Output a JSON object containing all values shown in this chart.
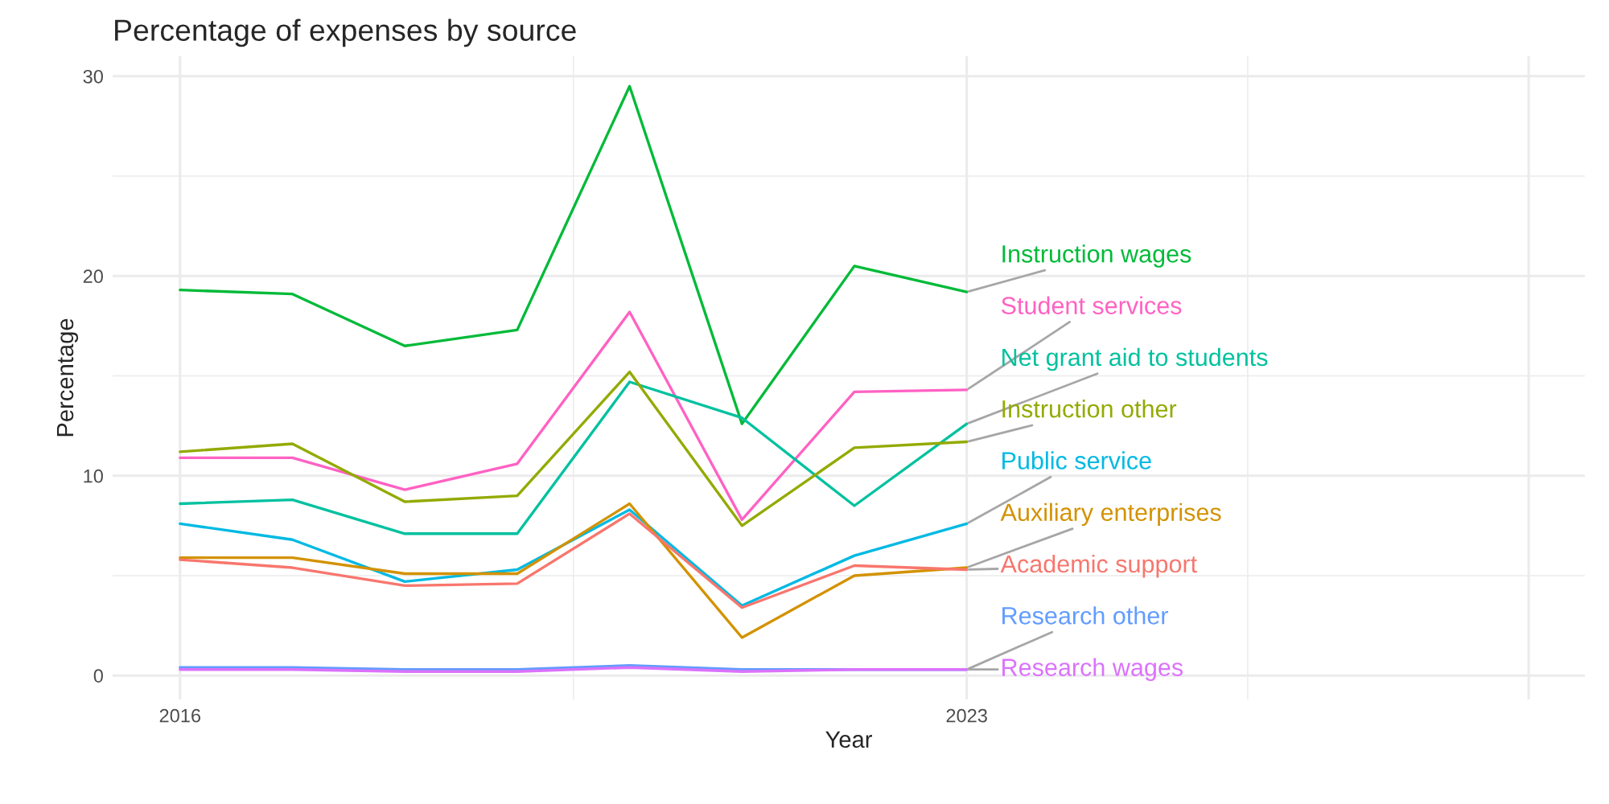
{
  "chart_data": {
    "type": "line",
    "title": "Percentage of expenses by source",
    "xlabel": "Year",
    "ylabel": "Percentage",
    "x": [
      2016,
      2017,
      2018,
      2019,
      2020,
      2021,
      2022,
      2023
    ],
    "xlim": [
      2015.4,
      2028.5
    ],
    "xticks": [
      2016,
      2023,
      {
        "value": 2028,
        "label": null
      }
    ],
    "ylim": [
      -1.2,
      31
    ],
    "yticks": [
      0,
      10,
      20,
      30
    ],
    "grid": true,
    "legend": false,
    "series": [
      {
        "name": "Instruction wages",
        "color": "#00ba38",
        "values": [
          19.3,
          19.1,
          16.5,
          17.3,
          29.5,
          12.6,
          20.5,
          19.2
        ]
      },
      {
        "name": "Student services",
        "color": "#ff61c3",
        "values": [
          10.9,
          10.9,
          9.3,
          10.6,
          18.2,
          7.8,
          14.2,
          14.3
        ]
      },
      {
        "name": "Net grant aid to students",
        "color": "#00c19f",
        "values": [
          8.6,
          8.8,
          7.1,
          7.1,
          14.7,
          12.9,
          8.5,
          12.6
        ]
      },
      {
        "name": "Instruction other",
        "color": "#93aa00",
        "values": [
          11.2,
          11.6,
          8.7,
          9.0,
          15.2,
          7.5,
          11.4,
          11.7
        ]
      },
      {
        "name": "Public service",
        "color": "#00b9e3",
        "values": [
          7.6,
          6.8,
          4.7,
          5.3,
          8.3,
          3.5,
          6.0,
          7.6
        ]
      },
      {
        "name": "Auxiliary enterprises",
        "color": "#d39200",
        "values": [
          5.9,
          5.9,
          5.1,
          5.1,
          8.6,
          1.9,
          5.0,
          5.4
        ]
      },
      {
        "name": "Academic support",
        "color": "#f8766d",
        "values": [
          5.8,
          5.4,
          4.5,
          4.6,
          8.1,
          3.4,
          5.5,
          5.3
        ]
      },
      {
        "name": "Research other",
        "color": "#619cff",
        "values": [
          0.4,
          0.4,
          0.3,
          0.3,
          0.5,
          0.3,
          0.3,
          0.3
        ]
      },
      {
        "name": "Research wages",
        "color": "#db72fb",
        "values": [
          0.3,
          0.3,
          0.2,
          0.2,
          0.4,
          0.2,
          0.3,
          0.3
        ]
      }
    ]
  }
}
